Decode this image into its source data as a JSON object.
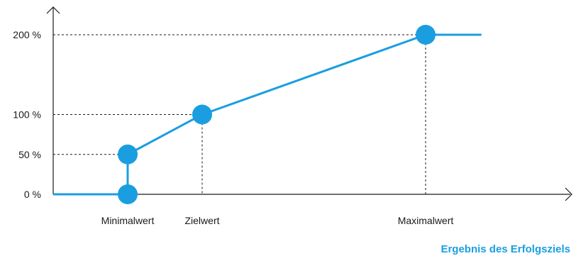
{
  "chart_data": {
    "type": "line",
    "title": "",
    "xlabel": "Ergebnis des Erfolgsziels",
    "ylabel": "",
    "y_ticks": [
      {
        "value": 0,
        "label": "0 %"
      },
      {
        "value": 50,
        "label": "50 %"
      },
      {
        "value": 100,
        "label": "100 %"
      },
      {
        "value": 200,
        "label": "200 %"
      }
    ],
    "x_ticks": [
      {
        "value": 1,
        "label": "Minimalwert"
      },
      {
        "value": 2,
        "label": "Zielwert"
      },
      {
        "value": 5,
        "label": "Maximalwert"
      }
    ],
    "xlim": [
      0,
      6.3
    ],
    "ylim": [
      0,
      200
    ],
    "series": [
      {
        "x": [
          0,
          1,
          1,
          2,
          5,
          5.75
        ],
        "y": [
          0,
          0,
          50,
          100,
          200,
          200
        ]
      }
    ],
    "markers": [
      {
        "x": 1,
        "y": 0
      },
      {
        "x": 1,
        "y": 50
      },
      {
        "x": 2,
        "y": 100
      },
      {
        "x": 5,
        "y": 200
      }
    ],
    "guides": [
      {
        "x": 1,
        "y": 50
      },
      {
        "x": 2,
        "y": 100
      },
      {
        "x": 5,
        "y": 200
      }
    ],
    "grid": false,
    "legend": "none",
    "colors": {
      "line": "#1a9ee0",
      "axis": "#1a1a1a",
      "xlabel": "#1a9ee0"
    }
  }
}
